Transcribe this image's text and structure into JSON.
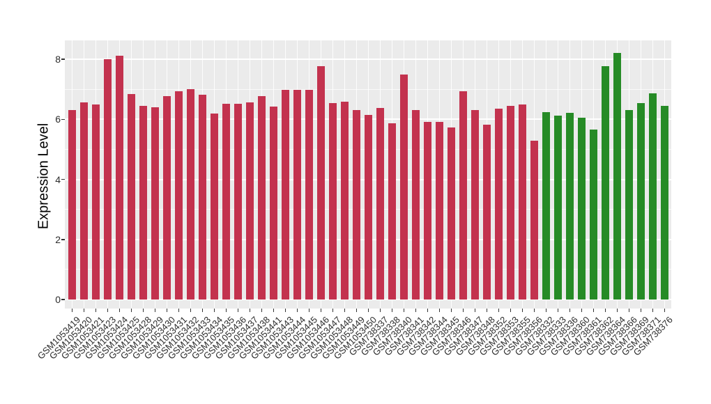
{
  "chart_data": {
    "type": "bar",
    "title": "",
    "xlabel": "",
    "ylabel": "Expression Level",
    "ylim": [
      0,
      8.6
    ],
    "yticks": [
      0,
      2,
      4,
      6,
      8
    ],
    "yticks_minor": [
      1,
      3,
      5,
      7
    ],
    "legend": null,
    "panel_background": "#EBEBEB",
    "gridline_color": "#FFFFFF",
    "tick_color": "#333333",
    "group_colors": {
      "red": "#C3324E",
      "green": "#268B26"
    },
    "bars": [
      {
        "label": "GSM1053419",
        "value": 6.32,
        "group": "red"
      },
      {
        "label": "GSM1053420",
        "value": 6.56,
        "group": "red"
      },
      {
        "label": "GSM1053421",
        "value": 6.5,
        "group": "red"
      },
      {
        "label": "GSM1053423",
        "value": 8.0,
        "group": "red"
      },
      {
        "label": "GSM1053424",
        "value": 8.12,
        "group": "red"
      },
      {
        "label": "GSM1053425",
        "value": 6.85,
        "group": "red"
      },
      {
        "label": "GSM1053428",
        "value": 6.46,
        "group": "red"
      },
      {
        "label": "GSM1053429",
        "value": 6.4,
        "group": "red"
      },
      {
        "label": "GSM1053430",
        "value": 6.77,
        "group": "red"
      },
      {
        "label": "GSM1053431",
        "value": 6.94,
        "group": "red"
      },
      {
        "label": "GSM1053432",
        "value": 7.0,
        "group": "red"
      },
      {
        "label": "GSM1053433",
        "value": 6.82,
        "group": "red"
      },
      {
        "label": "GSM1053434",
        "value": 6.19,
        "group": "red"
      },
      {
        "label": "GSM1053435",
        "value": 6.52,
        "group": "red"
      },
      {
        "label": "GSM1053436",
        "value": 6.52,
        "group": "red"
      },
      {
        "label": "GSM1053437",
        "value": 6.56,
        "group": "red"
      },
      {
        "label": "GSM1053438",
        "value": 6.77,
        "group": "red"
      },
      {
        "label": "GSM1053441",
        "value": 6.42,
        "group": "red"
      },
      {
        "label": "GSM1053443",
        "value": 6.98,
        "group": "red"
      },
      {
        "label": "GSM1053444",
        "value": 6.98,
        "group": "red"
      },
      {
        "label": "GSM1053445",
        "value": 6.98,
        "group": "red"
      },
      {
        "label": "GSM1053446",
        "value": 7.78,
        "group": "red"
      },
      {
        "label": "GSM1053447",
        "value": 6.54,
        "group": "red"
      },
      {
        "label": "GSM1053448",
        "value": 6.59,
        "group": "red"
      },
      {
        "label": "GSM1053449",
        "value": 6.32,
        "group": "red"
      },
      {
        "label": "GSM1053450",
        "value": 6.15,
        "group": "red"
      },
      {
        "label": "GSM738337",
        "value": 6.37,
        "group": "red"
      },
      {
        "label": "GSM738338",
        "value": 5.88,
        "group": "red"
      },
      {
        "label": "GSM738340",
        "value": 7.5,
        "group": "red"
      },
      {
        "label": "GSM738341",
        "value": 6.32,
        "group": "red"
      },
      {
        "label": "GSM738342",
        "value": 5.92,
        "group": "red"
      },
      {
        "label": "GSM738344",
        "value": 5.92,
        "group": "red"
      },
      {
        "label": "GSM738345",
        "value": 5.72,
        "group": "red"
      },
      {
        "label": "GSM738346",
        "value": 6.94,
        "group": "red"
      },
      {
        "label": "GSM738347",
        "value": 6.32,
        "group": "red"
      },
      {
        "label": "GSM738348",
        "value": 5.83,
        "group": "red"
      },
      {
        "label": "GSM738352",
        "value": 6.36,
        "group": "red"
      },
      {
        "label": "GSM738353",
        "value": 6.45,
        "group": "red"
      },
      {
        "label": "GSM738355",
        "value": 6.5,
        "group": "red"
      },
      {
        "label": "GSM738356",
        "value": 5.28,
        "group": "red"
      },
      {
        "label": "GSM738332",
        "value": 6.25,
        "group": "green"
      },
      {
        "label": "GSM738333",
        "value": 6.12,
        "group": "green"
      },
      {
        "label": "GSM738336",
        "value": 6.22,
        "group": "green"
      },
      {
        "label": "GSM738360",
        "value": 6.06,
        "group": "green"
      },
      {
        "label": "GSM738361",
        "value": 5.65,
        "group": "green"
      },
      {
        "label": "GSM738362",
        "value": 7.77,
        "group": "green"
      },
      {
        "label": "GSM738364",
        "value": 8.22,
        "group": "green"
      },
      {
        "label": "GSM738366",
        "value": 6.3,
        "group": "green"
      },
      {
        "label": "GSM738369",
        "value": 6.55,
        "group": "green"
      },
      {
        "label": "GSM738371",
        "value": 6.86,
        "group": "green"
      },
      {
        "label": "GSM738376",
        "value": 6.46,
        "group": "green"
      }
    ]
  }
}
